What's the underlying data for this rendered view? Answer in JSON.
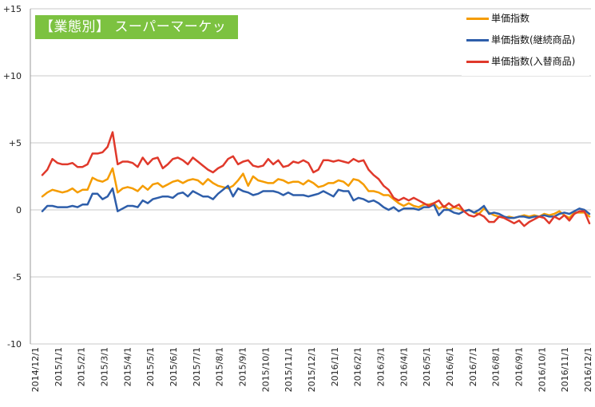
{
  "chart_data": {
    "type": "line",
    "title": "【業態別】 スーパーマーケット",
    "ylim": [
      -10,
      15
    ],
    "y_ticks": [
      {
        "value": 15,
        "label": "+15"
      },
      {
        "value": 10,
        "label": "+10"
      },
      {
        "value": 5,
        "label": "+5"
      },
      {
        "value": 0,
        "label": "0"
      },
      {
        "value": -5,
        "label": "-5"
      },
      {
        "value": -10,
        "label": "-10"
      }
    ],
    "x_tick_labels": [
      "2014/12/1",
      "2015/1/1",
      "2015/2/1",
      "2015/3/1",
      "2015/4/1",
      "2015/5/1",
      "2015/6/1",
      "2015/7/1",
      "2015/8/1",
      "2015/9/1",
      "2015/10/1",
      "2015/11/1",
      "2015/12/1",
      "2016/1/1",
      "2016/2/1",
      "2016/3/1",
      "2016/4/1",
      "2016/5/1",
      "2016/6/1",
      "2016/7/1",
      "2016/8/1",
      "2016/9/1",
      "2016/10/1",
      "2016/11/1",
      "2016/12/1"
    ],
    "grid": "horizontal",
    "legend_position": "top-right",
    "series": [
      {
        "name": "単価指数",
        "color": "#f59c00",
        "values": [
          1.0,
          1.3,
          1.5,
          1.4,
          1.3,
          1.4,
          1.6,
          1.3,
          1.5,
          1.5,
          2.4,
          2.2,
          2.1,
          2.3,
          3.1,
          1.3,
          1.6,
          1.7,
          1.6,
          1.4,
          1.8,
          1.5,
          1.9,
          2.0,
          1.7,
          1.9,
          2.1,
          2.2,
          2.0,
          2.2,
          2.3,
          2.2,
          1.9,
          2.3,
          2.0,
          1.8,
          1.7,
          1.6,
          1.8,
          2.2,
          2.7,
          1.8,
          2.5,
          2.2,
          2.1,
          2.0,
          2.0,
          2.3,
          2.2,
          2.0,
          2.1,
          2.1,
          1.9,
          2.2,
          2.0,
          1.7,
          1.8,
          2.0,
          2.0,
          2.2,
          2.1,
          1.8,
          2.3,
          2.2,
          1.9,
          1.4,
          1.4,
          1.3,
          1.1,
          1.1,
          0.8,
          0.5,
          0.3,
          0.5,
          0.3,
          0.2,
          0.4,
          0.4,
          0.5,
          0.1,
          0.3,
          0.0,
          0.2,
          0.1,
          -0.1,
          0.0,
          -0.2,
          -0.3,
          0.1,
          -0.2,
          -0.4,
          -0.5,
          -0.6,
          -0.5,
          -0.6,
          -0.5,
          -0.4,
          -0.5,
          -0.4,
          -0.5,
          -0.3,
          -0.4,
          -0.3,
          -0.1,
          -0.4,
          -0.6,
          -0.2,
          -0.2,
          -0.2,
          -0.5
        ]
      },
      {
        "name": "単価指数(継続商品)",
        "color": "#2e5eaa",
        "values": [
          -0.1,
          0.3,
          0.3,
          0.2,
          0.2,
          0.2,
          0.3,
          0.2,
          0.4,
          0.4,
          1.2,
          1.2,
          0.8,
          1.0,
          1.6,
          -0.1,
          0.1,
          0.3,
          0.3,
          0.2,
          0.7,
          0.5,
          0.8,
          0.9,
          1.0,
          1.0,
          0.9,
          1.2,
          1.3,
          1.0,
          1.4,
          1.2,
          1.0,
          1.0,
          0.8,
          1.2,
          1.5,
          1.8,
          1.0,
          1.6,
          1.4,
          1.3,
          1.1,
          1.2,
          1.4,
          1.4,
          1.4,
          1.3,
          1.1,
          1.3,
          1.1,
          1.1,
          1.1,
          1.0,
          1.1,
          1.2,
          1.4,
          1.2,
          1.0,
          1.5,
          1.4,
          1.4,
          0.7,
          0.9,
          0.8,
          0.6,
          0.7,
          0.5,
          0.2,
          0.0,
          0.2,
          -0.1,
          0.1,
          0.1,
          0.1,
          0.0,
          0.2,
          0.2,
          0.4,
          -0.4,
          0.0,
          0.0,
          -0.2,
          -0.3,
          -0.1,
          0.0,
          -0.2,
          0.0,
          0.3,
          -0.3,
          -0.2,
          -0.3,
          -0.5,
          -0.6,
          -0.6,
          -0.5,
          -0.5,
          -0.6,
          -0.5,
          -0.5,
          -0.4,
          -0.5,
          -0.5,
          -0.3,
          -0.2,
          -0.3,
          -0.1,
          0.1,
          0.0,
          -0.3
        ]
      },
      {
        "name": "単価指数(入替商品)",
        "color": "#e0392b",
        "values": [
          2.6,
          3.0,
          3.8,
          3.5,
          3.4,
          3.4,
          3.5,
          3.2,
          3.2,
          3.4,
          4.2,
          4.2,
          4.3,
          4.7,
          5.8,
          3.4,
          3.6,
          3.6,
          3.5,
          3.2,
          3.9,
          3.4,
          3.8,
          3.9,
          3.1,
          3.4,
          3.8,
          3.9,
          3.7,
          3.4,
          3.9,
          3.6,
          3.3,
          3.0,
          2.8,
          3.1,
          3.3,
          3.8,
          4.0,
          3.4,
          3.6,
          3.7,
          3.3,
          3.2,
          3.3,
          3.8,
          3.4,
          3.7,
          3.2,
          3.3,
          3.6,
          3.5,
          3.7,
          3.5,
          2.8,
          3.0,
          3.7,
          3.7,
          3.6,
          3.7,
          3.6,
          3.5,
          3.8,
          3.6,
          3.7,
          3.0,
          2.6,
          2.3,
          1.8,
          1.5,
          0.9,
          0.7,
          0.9,
          0.7,
          0.9,
          0.7,
          0.5,
          0.3,
          0.5,
          0.7,
          0.2,
          0.5,
          0.2,
          0.4,
          -0.1,
          -0.4,
          -0.5,
          -0.3,
          -0.5,
          -0.9,
          -0.9,
          -0.5,
          -0.6,
          -0.8,
          -1.0,
          -0.8,
          -1.2,
          -0.9,
          -0.7,
          -0.5,
          -0.6,
          -1.0,
          -0.5,
          -0.7,
          -0.4,
          -0.8,
          -0.3,
          -0.1,
          -0.1,
          -1.0
        ]
      }
    ]
  }
}
